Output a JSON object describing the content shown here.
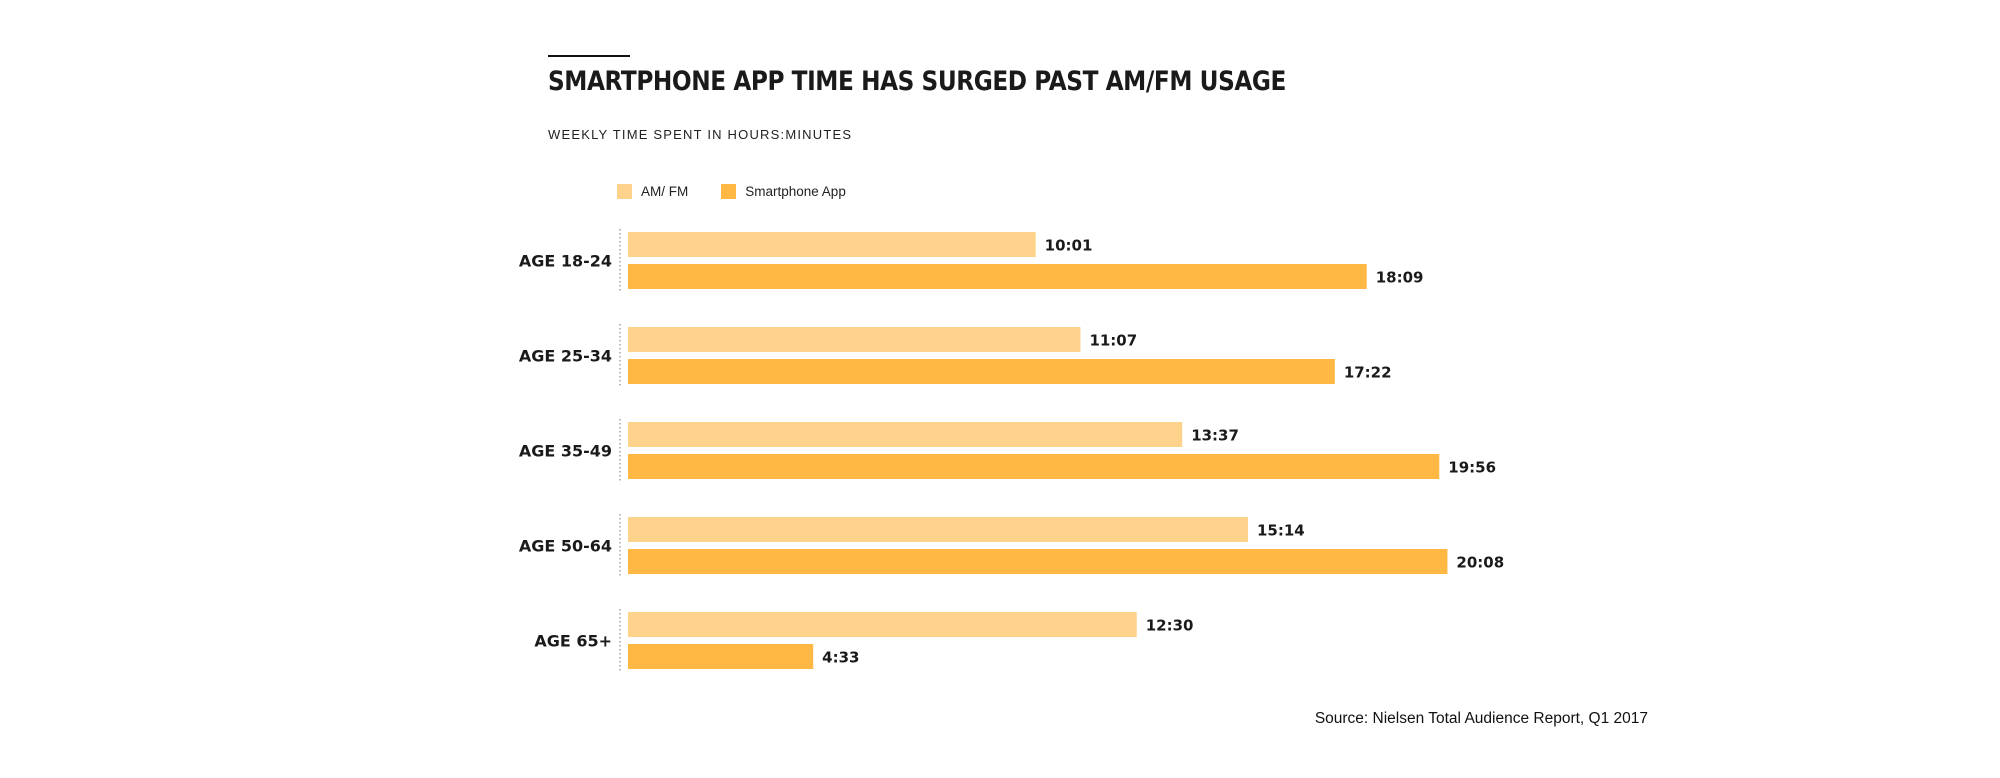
{
  "header": {
    "title": "SMARTPHONE APP TIME HAS SURGED PAST AM/FM USAGE",
    "subtitle": "WEEKLY TIME SPENT IN HOURS:MINUTES"
  },
  "legend": {
    "items": [
      {
        "label": "AM/ FM",
        "color": "#FDD38C"
      },
      {
        "label": "Smartphone App",
        "color": "#FFB843"
      }
    ]
  },
  "footer": {
    "source": "Source: Nielsen Total Audience Report, Q1 2017"
  },
  "chart_data": {
    "type": "bar",
    "orientation": "horizontal",
    "categories": [
      "AGE 18-24",
      "AGE 25-34",
      "AGE 35-49",
      "AGE 50-64",
      "AGE 65+"
    ],
    "xlim": [
      0,
      21
    ],
    "grid": false,
    "series": [
      {
        "name": "AM/ FM",
        "color": "#FDD38C",
        "values": [
          10.0167,
          11.1167,
          13.6167,
          15.2333,
          12.5
        ],
        "labels": [
          "10:01",
          "11:07",
          "13:37",
          "15:14",
          "12:30"
        ]
      },
      {
        "name": "Smartphone App",
        "color": "#FFB843",
        "values": [
          18.15,
          17.3667,
          19.9333,
          20.1333,
          4.55
        ],
        "labels": [
          "18:09",
          "17:22",
          "19:56",
          "20:08",
          "4:33"
        ]
      }
    ]
  }
}
